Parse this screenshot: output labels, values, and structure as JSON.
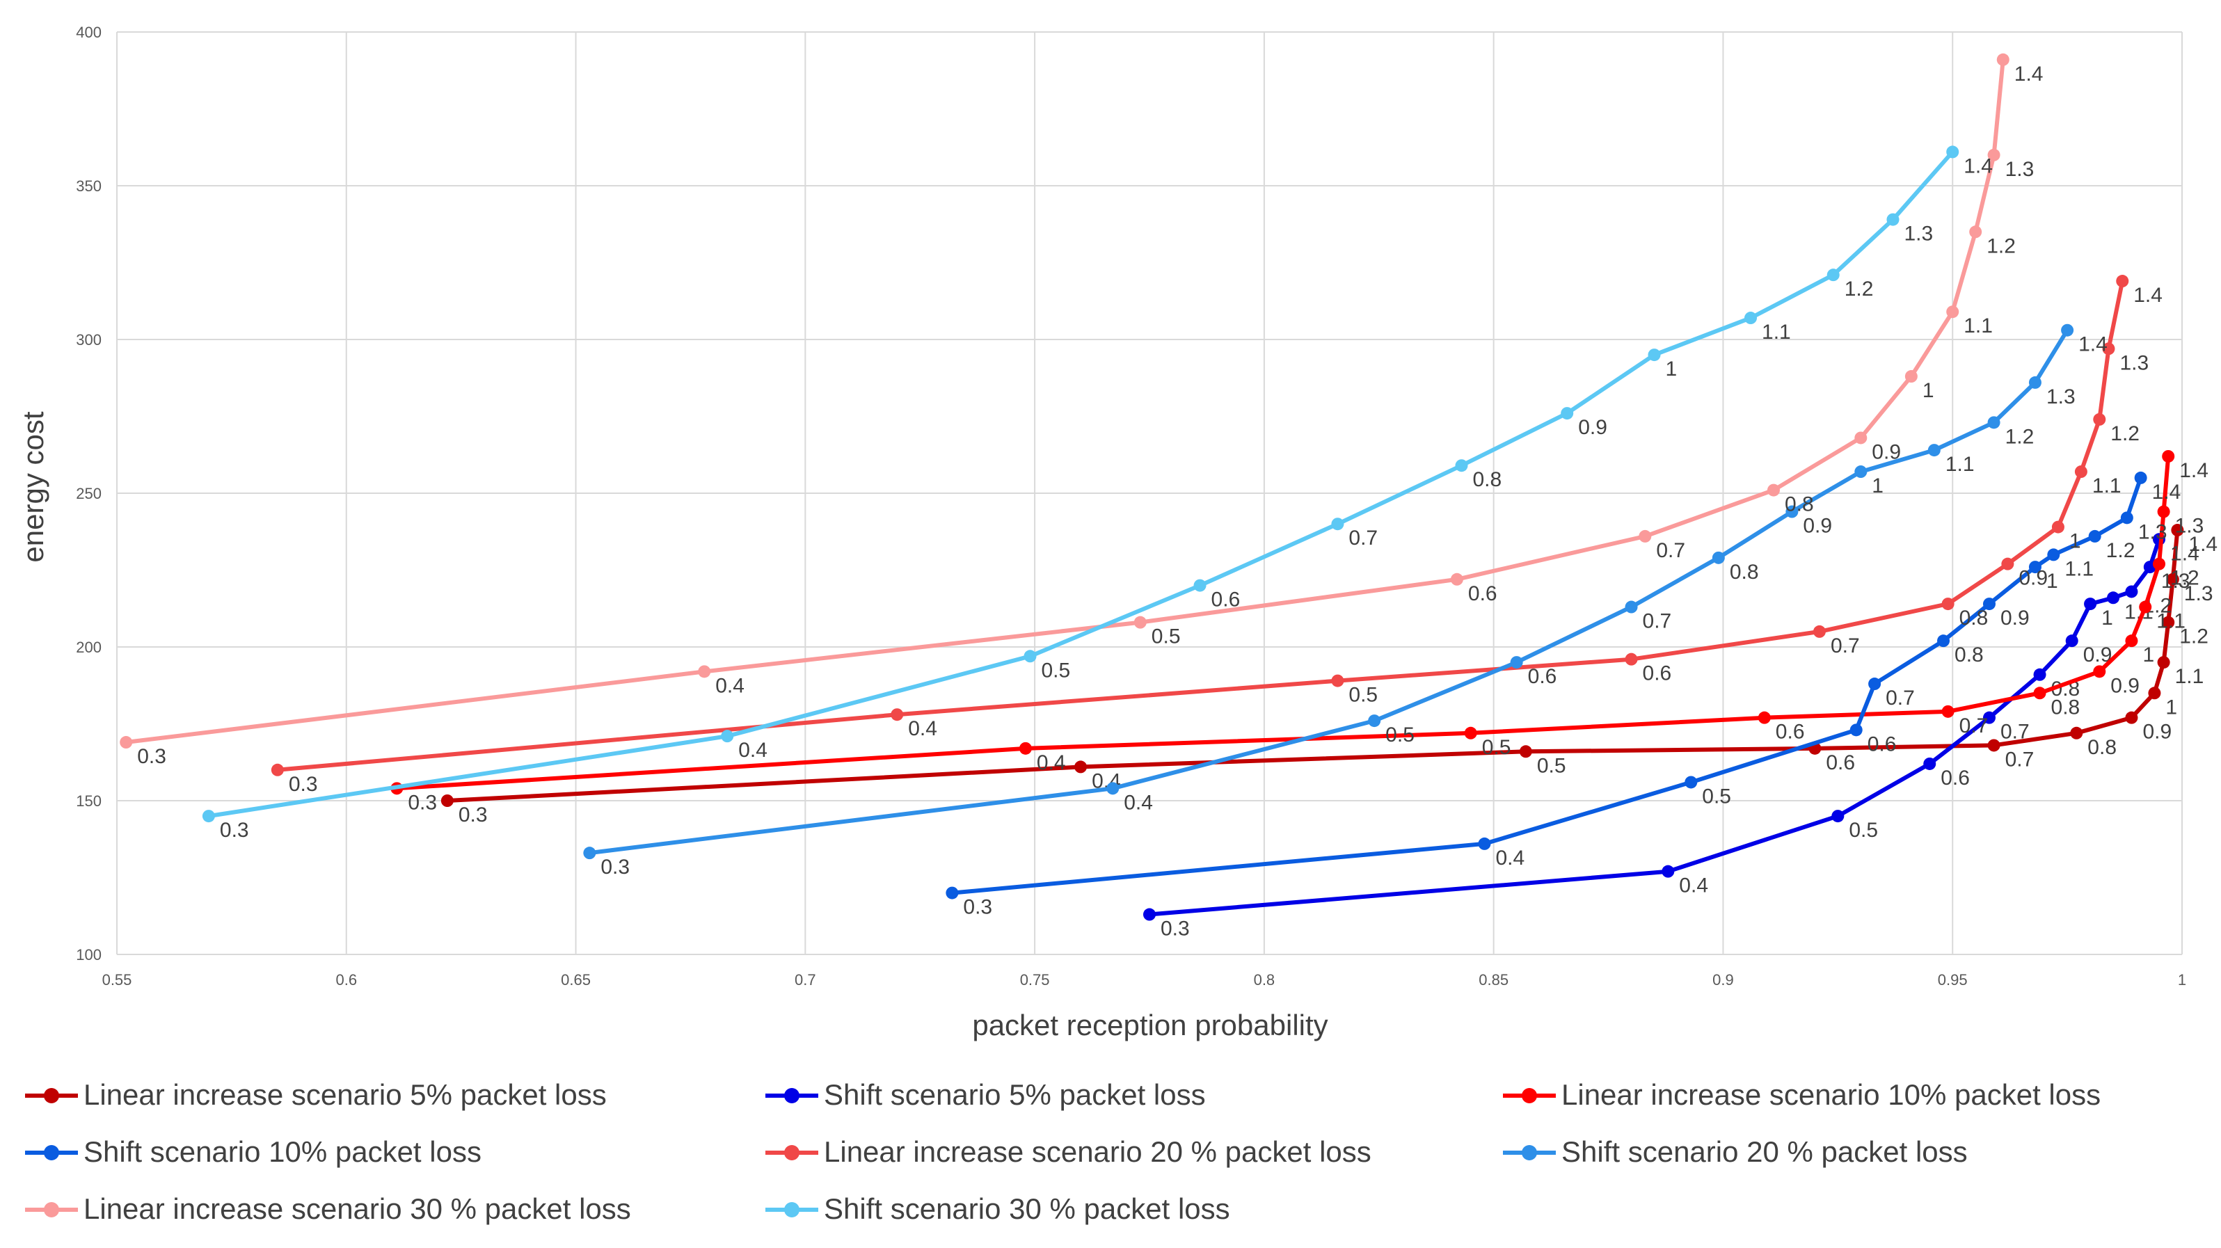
{
  "chart_data": {
    "type": "line",
    "title": "",
    "xlabel": "packet reception probability",
    "ylabel": "energy cost",
    "xlim": [
      0.55,
      1.0
    ],
    "ylim": [
      100,
      400
    ],
    "x_ticks": [
      "0.55",
      "0.6",
      "0.65",
      "0.7",
      "0.75",
      "0.8",
      "0.85",
      "0.9",
      "0.95",
      "1"
    ],
    "y_ticks": [
      "100",
      "150",
      "200",
      "250",
      "300",
      "350",
      "400"
    ],
    "grid": true,
    "legend_position": "bottom",
    "series": [
      {
        "name": "Linear increase scenario 5% packet loss",
        "color": "#C00000",
        "point_labels": [
          "0.3",
          "0.4",
          "0.5",
          "0.6",
          "0.7",
          "0.8",
          "0.9",
          "1",
          "1.1",
          "1.2",
          "1.3",
          "1.4"
        ],
        "x": [
          0.622,
          0.76,
          0.857,
          0.92,
          0.959,
          0.977,
          0.989,
          0.994,
          0.996,
          0.997,
          0.998,
          0.999
        ],
        "y": [
          150,
          161,
          166,
          167,
          168,
          172,
          177,
          185,
          195,
          208,
          222,
          238
        ]
      },
      {
        "name": "Shift scenario 5% packet loss",
        "color": "#0000E6",
        "point_labels": [
          "0.3",
          "0.4",
          "0.5",
          "0.6",
          "0.7",
          "0.8",
          "0.9",
          "1",
          "1.1",
          "1.2",
          "1.3",
          "1.4"
        ],
        "x": [
          0.775,
          0.888,
          0.925,
          0.945,
          0.958,
          0.969,
          0.976,
          0.98,
          0.985,
          0.989,
          0.993,
          0.995
        ],
        "y": [
          113,
          127,
          145,
          162,
          177,
          191,
          202,
          214,
          216,
          218,
          226,
          235
        ]
      },
      {
        "name": "Linear increase scenario 10% packet loss",
        "color": "#FF0000",
        "point_labels": [
          "0.3",
          "0.4",
          "0.5",
          "0.6",
          "0.7",
          "0.8",
          "0.9",
          "1",
          "1.1",
          "1.2",
          "1.3",
          "1.4"
        ],
        "x": [
          0.611,
          0.748,
          0.845,
          0.909,
          0.949,
          0.969,
          0.982,
          0.989,
          0.992,
          0.995,
          0.996,
          0.997
        ],
        "y": [
          154,
          167,
          172,
          177,
          179,
          185,
          192,
          202,
          213,
          227,
          244,
          262
        ]
      },
      {
        "name": "Shift scenario 10% packet loss",
        "color": "#0A5CE0",
        "point_labels": [
          "0.3",
          "0.4",
          "0.5",
          "0.6",
          "0.7",
          "0.8",
          "0.9",
          "1",
          "1.1",
          "1.2",
          "1.3",
          "1.4"
        ],
        "x": [
          0.732,
          0.848,
          0.893,
          0.929,
          0.933,
          0.948,
          0.958,
          0.968,
          0.972,
          0.981,
          0.988,
          0.991
        ],
        "y": [
          120,
          136,
          156,
          173,
          188,
          202,
          214,
          226,
          230,
          236,
          242,
          255
        ]
      },
      {
        "name": "Linear increase scenario 20 % packet loss",
        "color": "#F04848",
        "point_labels": [
          "0.3",
          "0.4",
          "0.5",
          "0.6",
          "0.7",
          "0.8",
          "0.9",
          "1",
          "1.1",
          "1.2",
          "1.3",
          "1.4"
        ],
        "x": [
          0.585,
          0.72,
          0.816,
          0.88,
          0.921,
          0.949,
          0.962,
          0.973,
          0.978,
          0.982,
          0.984,
          0.987
        ],
        "y": [
          160,
          178,
          189,
          196,
          205,
          214,
          227,
          239,
          257,
          274,
          297,
          319
        ]
      },
      {
        "name": "Shift scenario 20 % packet loss",
        "color": "#2E8FE8",
        "point_labels": [
          "0.3",
          "0.4",
          "0.5",
          "0.6",
          "0.7",
          "0.8",
          "0.9",
          "1",
          "1.1",
          "1.2",
          "1.3",
          "1.4"
        ],
        "x": [
          0.653,
          0.767,
          0.824,
          0.855,
          0.88,
          0.899,
          0.915,
          0.93,
          0.946,
          0.959,
          0.968,
          0.975
        ],
        "y": [
          133,
          154,
          176,
          195,
          213,
          229,
          244,
          257,
          264,
          273,
          286,
          303
        ]
      },
      {
        "name": "Linear increase scenario 30 % packet loss",
        "color": "#FA9A9A",
        "point_labels": [
          "0.3",
          "0.4",
          "0.5",
          "0.6",
          "0.7",
          "0.8",
          "0.9",
          "1",
          "1.1",
          "1.2",
          "1.3",
          "1.4"
        ],
        "x": [
          0.552,
          0.678,
          0.773,
          0.842,
          0.883,
          0.911,
          0.93,
          0.941,
          0.95,
          0.955,
          0.959,
          0.961
        ],
        "y": [
          169,
          192,
          208,
          222,
          236,
          251,
          268,
          288,
          309,
          335,
          360,
          391
        ]
      },
      {
        "name": "Shift scenario 30 % packet loss",
        "color": "#5CC8F4",
        "point_labels": [
          "0.3",
          "0.4",
          "0.5",
          "0.6",
          "0.7",
          "0.8",
          "0.9",
          "1",
          "1.1",
          "1.2",
          "1.3",
          "1.4"
        ],
        "x": [
          0.57,
          0.683,
          0.749,
          0.786,
          0.816,
          0.843,
          0.866,
          0.885,
          0.906,
          0.924,
          0.937,
          0.95
        ],
        "y": [
          145,
          171,
          197,
          220,
          240,
          259,
          276,
          295,
          307,
          321,
          339,
          361
        ]
      }
    ]
  }
}
